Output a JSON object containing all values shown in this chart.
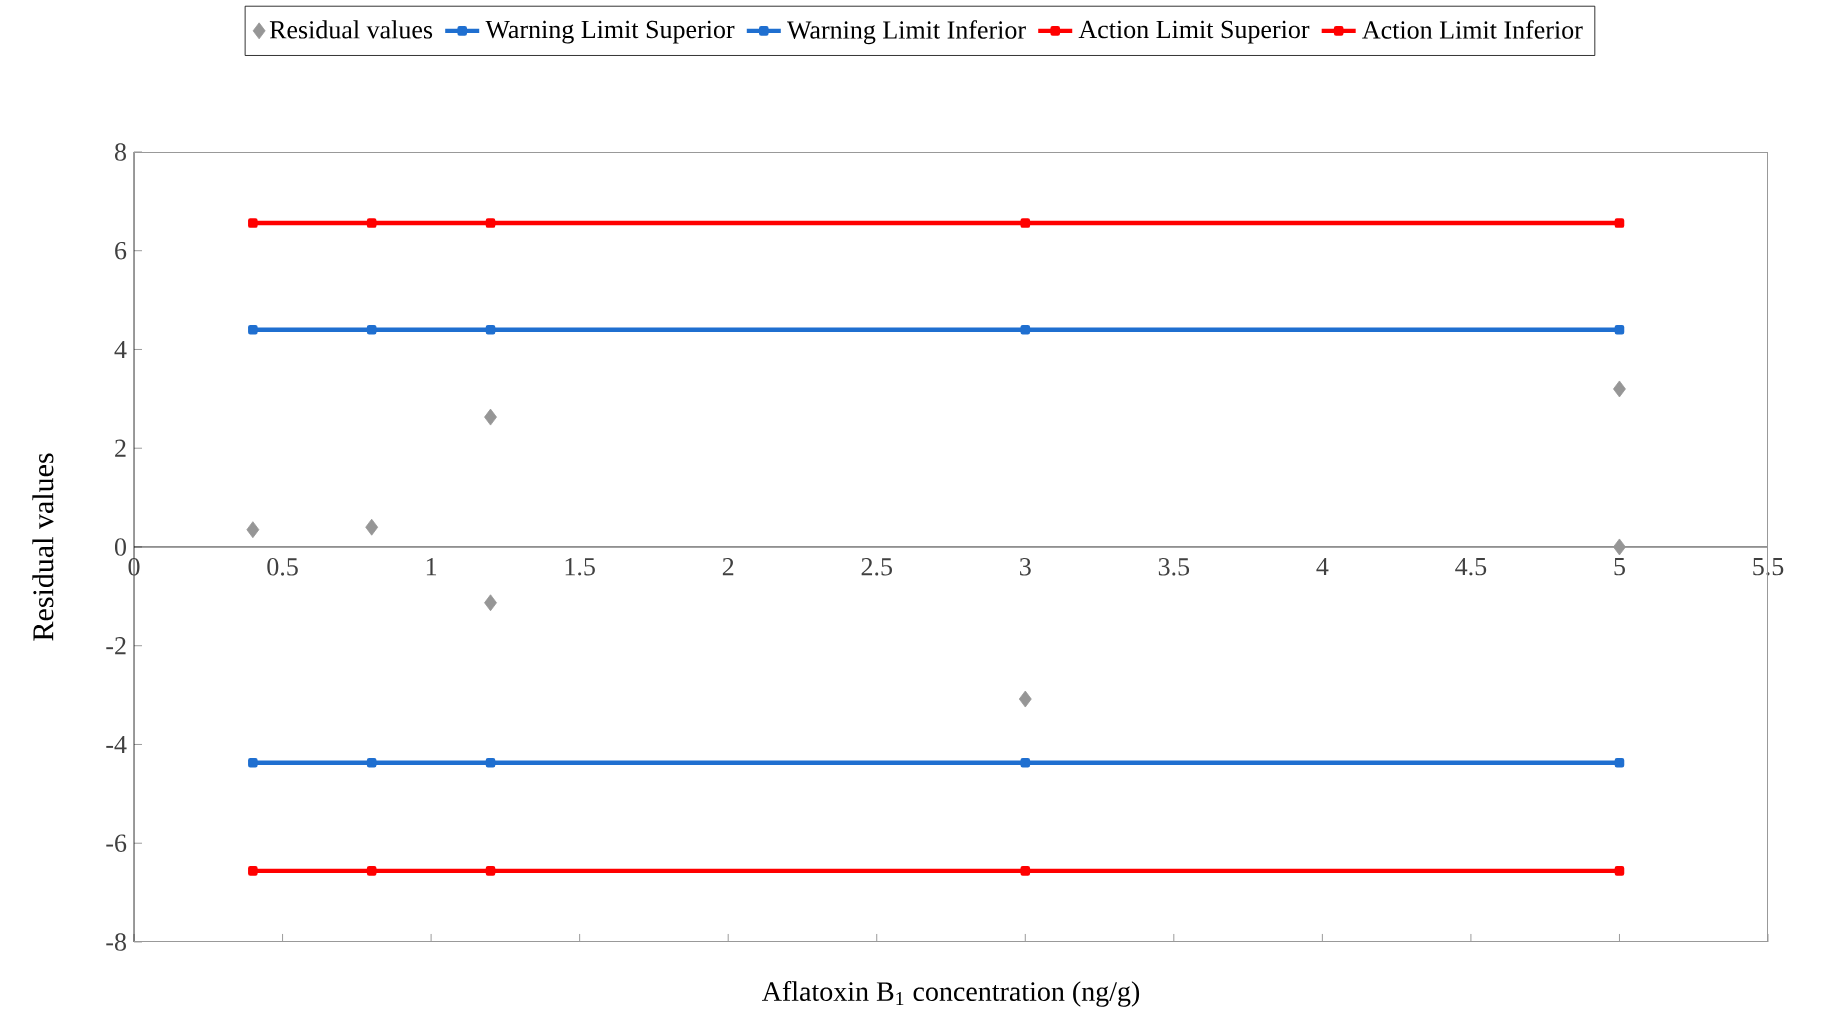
{
  "chart_data": {
    "type": "line",
    "xlabel": "Aflatoxin B$_{1}$ concentration (ng/g)",
    "ylabel": "Residual values",
    "xlim": [
      0,
      5.5
    ],
    "xticks": [
      0,
      0.5,
      1,
      1.5,
      2,
      2.5,
      3,
      3.5,
      4,
      4.5,
      5,
      5.5
    ],
    "ylim": [
      -8,
      8
    ],
    "yticks": [
      -8,
      -6,
      -4,
      -2,
      0,
      2,
      4,
      6,
      8
    ],
    "legend": "top",
    "grid": false,
    "x": [
      0.4,
      0.8,
      1.2,
      3,
      5
    ],
    "series": [
      {
        "name": "Residual values",
        "type": "scatter",
        "marker": "diamond",
        "color": "#969696",
        "x": [
          0.4,
          0.8,
          1.2,
          1.2,
          3,
          5,
          5
        ],
        "values": [
          0.35,
          0.4,
          2.63,
          -1.13,
          -3.08,
          3.2,
          0
        ]
      },
      {
        "name": "Warning Limit Superior",
        "marker": "square",
        "color": "#1f6fd0",
        "values": [
          4.4,
          4.4,
          4.4,
          4.4,
          4.4
        ]
      },
      {
        "name": "Warning Limit Inferior",
        "marker": "square",
        "color": "#1f6fd0",
        "values": [
          -4.37,
          -4.37,
          -4.37,
          -4.37,
          -4.37
        ]
      },
      {
        "name": "Action Limit Superior",
        "marker": "square",
        "color": "#ff0000",
        "values": [
          6.56,
          6.56,
          6.56,
          6.56,
          6.56
        ]
      },
      {
        "name": "Action Limit Inferior",
        "marker": "square",
        "color": "#ff0000",
        "values": [
          -6.56,
          -6.56,
          -6.56,
          -6.56,
          -6.56
        ]
      }
    ]
  }
}
